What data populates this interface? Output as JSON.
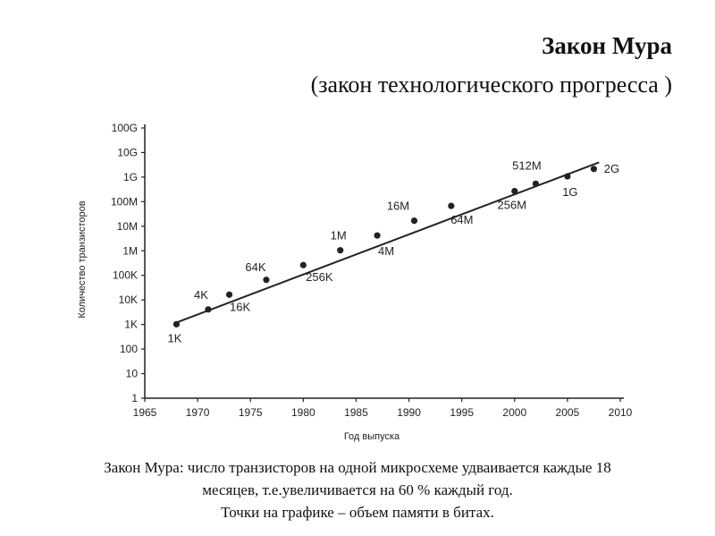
{
  "slide": {
    "title": "Закон Мура",
    "subtitle": "(закон технологического прогресса )",
    "caption_lines": [
      "Закон Мура: число транзисторов на одной микросхеме удваивается каждые 18",
      "месяцев, т.е.увеличивается на 60 % каждый год.",
      "Точки на графике –  объем памяти в битах."
    ]
  },
  "chart_data": {
    "type": "scatter",
    "xlabel": "Год выпуска",
    "ylabel": "Количество транзисторов",
    "x_ticks": [
      1965,
      1970,
      1975,
      1980,
      1985,
      1990,
      1995,
      2000,
      2005,
      2010
    ],
    "xlim": [
      1965,
      2010
    ],
    "y_scale": "log",
    "y_ticks": [
      {
        "value": 1,
        "label": "1"
      },
      {
        "value": 10,
        "label": "10"
      },
      {
        "value": 100,
        "label": "100"
      },
      {
        "value": 1000,
        "label": "1K"
      },
      {
        "value": 10000,
        "label": "10K"
      },
      {
        "value": 100000,
        "label": "100K"
      },
      {
        "value": 1000000,
        "label": "1M"
      },
      {
        "value": 10000000,
        "label": "10M"
      },
      {
        "value": 100000000,
        "label": "100M"
      },
      {
        "value": 1000000000,
        "label": "1G"
      },
      {
        "value": 10000000000,
        "label": "10G"
      },
      {
        "value": 100000000000,
        "label": "100G"
      }
    ],
    "ylim": [
      1,
      100000000000
    ],
    "points": [
      {
        "x": 1968,
        "y": 1024,
        "label": "1K"
      },
      {
        "x": 1971,
        "y": 4096,
        "label": "4K"
      },
      {
        "x": 1973,
        "y": 16384,
        "label": "16K"
      },
      {
        "x": 1976.5,
        "y": 65536,
        "label": "64K"
      },
      {
        "x": 1980,
        "y": 262144,
        "label": "256K"
      },
      {
        "x": 1983.5,
        "y": 1048576,
        "label": "1M"
      },
      {
        "x": 1987,
        "y": 4194304,
        "label": "4M"
      },
      {
        "x": 1990.5,
        "y": 16777216,
        "label": "16M"
      },
      {
        "x": 1994,
        "y": 67108864,
        "label": "64M"
      },
      {
        "x": 2000,
        "y": 268435456,
        "label": "256M"
      },
      {
        "x": 2002,
        "y": 536870912,
        "label": "512M"
      },
      {
        "x": 2005,
        "y": 1073741824,
        "label": "1G"
      },
      {
        "x": 2007.5,
        "y": 2147483648,
        "label": "2G"
      }
    ],
    "trend_line": {
      "x": [
        1968,
        2008
      ],
      "y": [
        1200,
        4000000000
      ]
    },
    "grid": false,
    "legend": "none"
  }
}
